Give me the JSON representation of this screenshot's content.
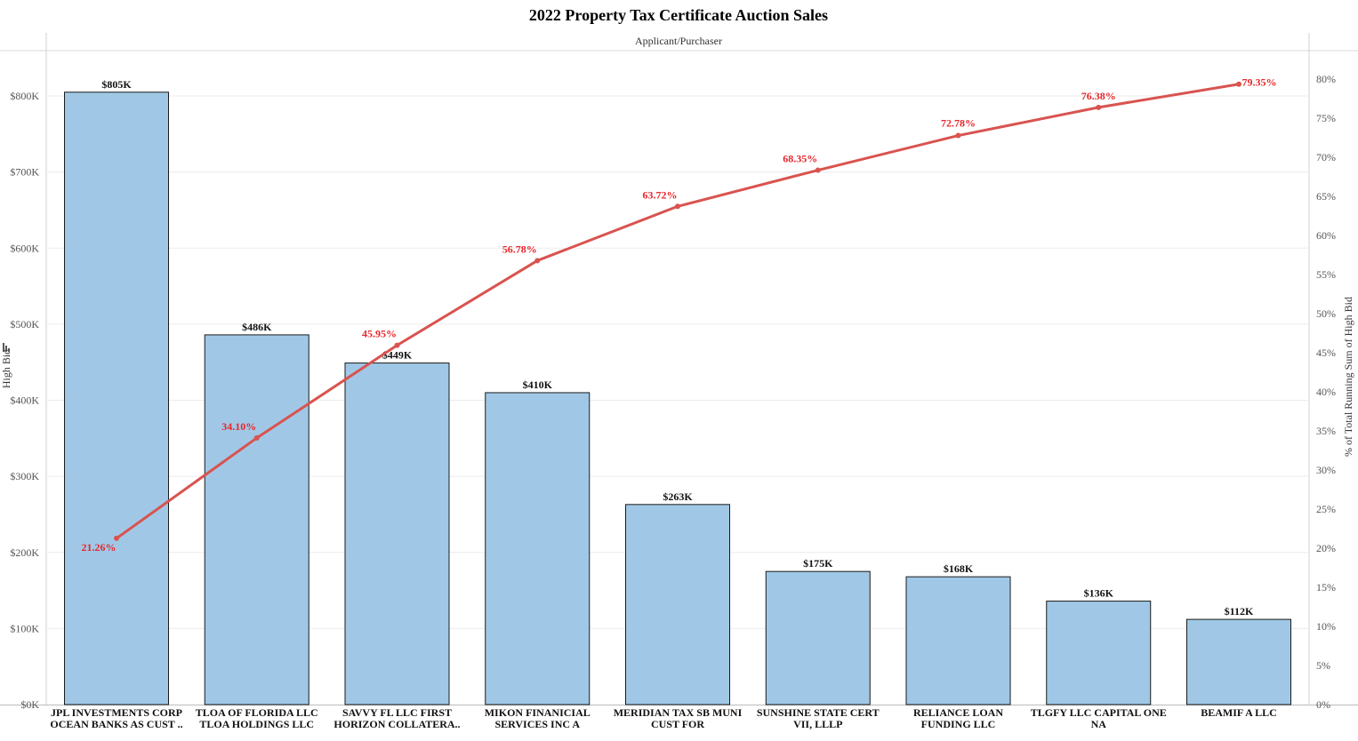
{
  "chart_data": {
    "type": "bar",
    "title": "2022 Property Tax Certificate Auction Sales",
    "subtitle": "Applicant/Purchaser",
    "ylabel": "High Bid",
    "y2label": "% of Total Running Sum of High Bid",
    "ylim": [
      0,
      900
    ],
    "y2lim": [
      0,
      85
    ],
    "y_ticks": [
      0,
      100,
      200,
      300,
      400,
      500,
      600,
      700,
      800
    ],
    "y_tick_labels": [
      "$0K",
      "$100K",
      "$200K",
      "$300K",
      "$400K",
      "$500K",
      "$600K",
      "$700K",
      "$800K"
    ],
    "y2_ticks": [
      0,
      5,
      10,
      15,
      20,
      25,
      30,
      35,
      40,
      45,
      50,
      55,
      60,
      65,
      70,
      75,
      80
    ],
    "y2_tick_labels": [
      "0%",
      "5%",
      "10%",
      "15%",
      "20%",
      "25%",
      "30%",
      "35%",
      "40%",
      "45%",
      "50%",
      "55%",
      "60%",
      "65%",
      "70%",
      "75%",
      "80%"
    ],
    "categories": [
      [
        "JPL INVESTMENTS CORP",
        "OCEAN BANKS AS CUST .."
      ],
      [
        "TLOA OF FLORIDA LLC",
        "TLOA HOLDINGS LLC"
      ],
      [
        "SAVVY FL LLC FIRST",
        "HORIZON COLLATERA.."
      ],
      [
        "MIKON FINANICIAL",
        "SERVICES INC A"
      ],
      [
        "MERIDIAN TAX SB MUNI",
        "CUST FOR"
      ],
      [
        "SUNSHINE STATE CERT",
        "VII, LLLP"
      ],
      [
        "RELIANCE LOAN",
        "FUNDING LLC"
      ],
      [
        "TLGFY LLC CAPITAL ONE",
        "NA"
      ],
      [
        "BEAMIF A LLC"
      ]
    ],
    "series": [
      {
        "name": "High Bid",
        "type": "bar",
        "color": "#a0c8e6",
        "values": [
          805,
          486,
          449,
          410,
          263,
          175,
          168,
          136,
          112
        ],
        "labels": [
          "$805K",
          "$486K",
          "$449K",
          "$410K",
          "$263K",
          "$175K",
          "$168K",
          "$136K",
          "$112K"
        ]
      },
      {
        "name": "% of Total Running Sum of High Bid",
        "type": "line",
        "color": "#d9534f",
        "label_color": "#e8262b",
        "values": [
          21.26,
          34.1,
          45.95,
          56.78,
          63.72,
          68.35,
          72.78,
          76.38,
          79.35
        ],
        "labels": [
          "21.26%",
          "34.10%",
          "45.95%",
          "56.78%",
          "63.72%",
          "68.35%",
          "72.78%",
          "76.38%",
          "79.35%"
        ]
      }
    ]
  }
}
